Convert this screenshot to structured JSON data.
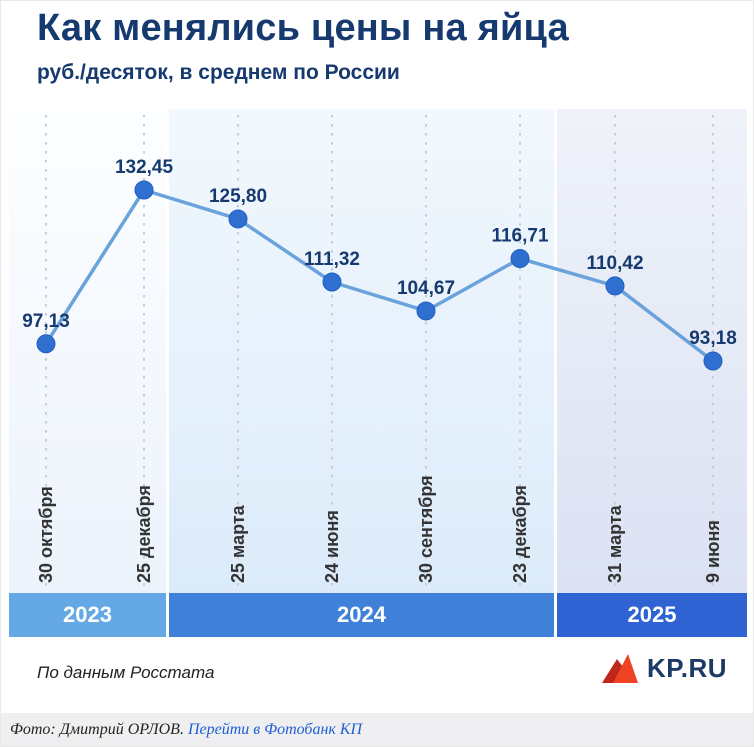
{
  "header": {
    "title": "Как менялись цены на яйца",
    "subtitle": "руб./десяток, в среднем по России"
  },
  "chart_data": {
    "type": "line",
    "title": "Как менялись цены на яйца",
    "ylabel": "руб./десяток, в среднем по России",
    "categories": [
      "30 октября",
      "25 декабря",
      "25 марта",
      "24 июня",
      "30 сентября",
      "23 декабря",
      "31 марта",
      "9 июня"
    ],
    "values": [
      97.13,
      132.45,
      125.8,
      111.32,
      104.67,
      116.71,
      110.42,
      93.18
    ],
    "value_labels": [
      "97,13",
      "132,45",
      "125,80",
      "111,32",
      "104,67",
      "116,71",
      "110,42",
      "93,18"
    ],
    "year_bands": [
      {
        "label": "2023",
        "point_indexes": [
          0,
          1
        ],
        "color": "#64a9e6"
      },
      {
        "label": "2024",
        "point_indexes": [
          2,
          3,
          4,
          5
        ],
        "color": "#3f80d9"
      },
      {
        "label": "2025",
        "point_indexes": [
          6,
          7
        ],
        "color": "#2f63d4"
      }
    ],
    "line_color": "#6aa3dc",
    "dot_color": "#2e6fd0",
    "dot_stroke_color": "#1f5fc0",
    "value_label_color": "#163a70",
    "axis_label_color": "#333333",
    "grid_line_color": "#c6cdd8",
    "legend": "none",
    "grid": "vertical-dashed"
  },
  "footer": {
    "source": "По данным Росстата",
    "logo_text": "KP.RU"
  },
  "credit": {
    "text": "Фото: Дмитрий ОРЛОВ. ",
    "link_text": "Перейти в Фотобанк КП"
  }
}
